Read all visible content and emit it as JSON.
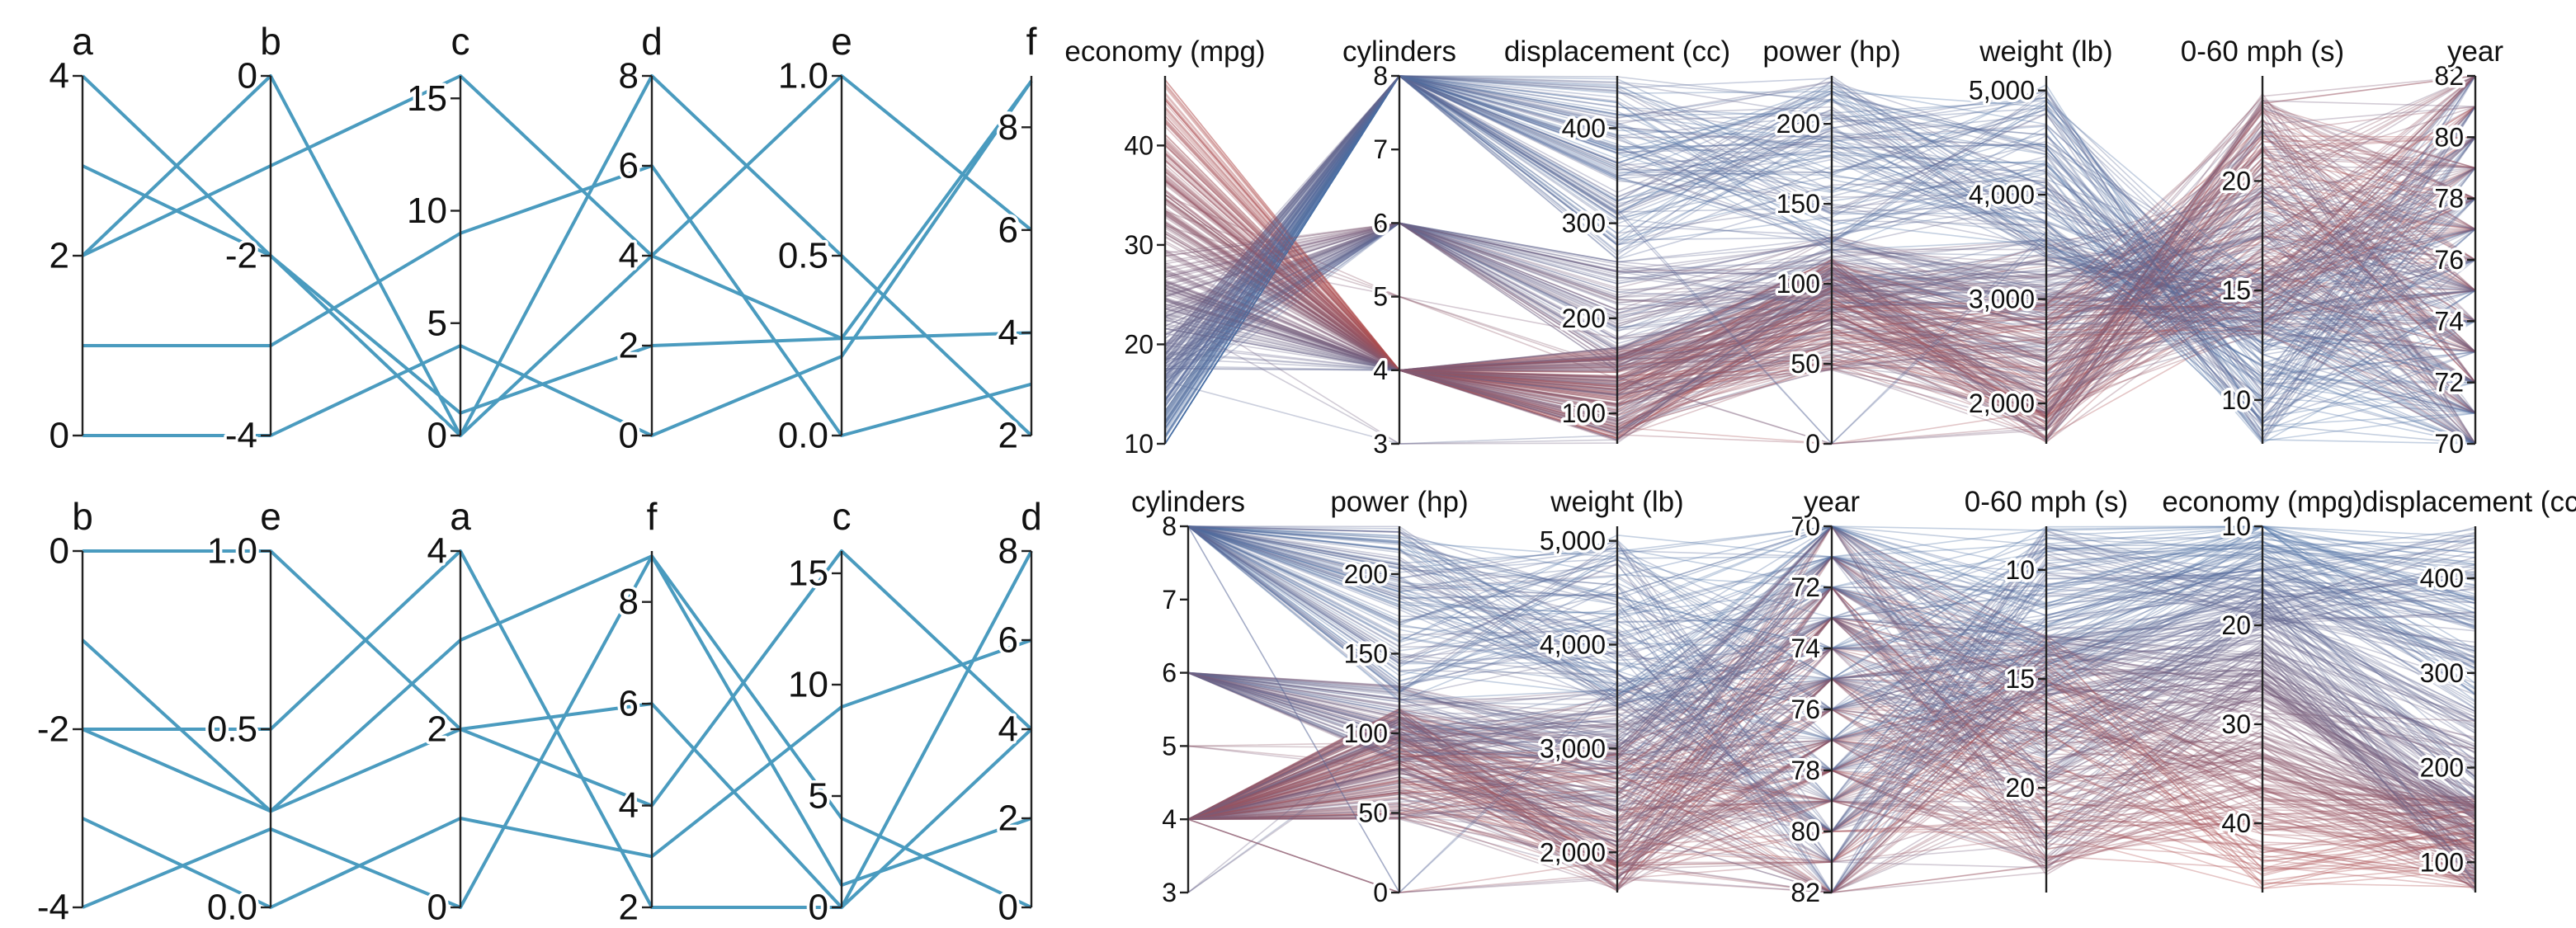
{
  "colors": {
    "small_line": "#4a9bbf",
    "car_blue": "#4a6fa5",
    "car_red": "#b04a4a"
  },
  "chart_data": [
    {
      "type": "parallel-coordinates",
      "axes": [
        {
          "name": "a",
          "range": [
            0,
            4
          ],
          "ticks": [
            0,
            2,
            4
          ],
          "tick_labels": [
            "0",
            "2",
            "4"
          ]
        },
        {
          "name": "b",
          "range": [
            -4,
            0
          ],
          "ticks": [
            -4,
            -2,
            0
          ],
          "tick_labels": [
            "-4",
            "-2",
            "0"
          ]
        },
        {
          "name": "c",
          "range": [
            0,
            16
          ],
          "ticks": [
            0,
            5,
            10,
            15
          ],
          "tick_labels": [
            "0",
            "5",
            "10",
            "15"
          ]
        },
        {
          "name": "d",
          "range": [
            0,
            8
          ],
          "ticks": [
            0,
            2,
            4,
            6,
            8
          ],
          "tick_labels": [
            "0",
            "2",
            "4",
            "6",
            "8"
          ]
        },
        {
          "name": "e",
          "range": [
            0,
            1
          ],
          "ticks": [
            0,
            0.5,
            1
          ],
          "tick_labels": [
            "0.0",
            "0.5",
            "1.0"
          ]
        },
        {
          "name": "f",
          "range": [
            2,
            9
          ],
          "ticks": [
            2,
            4,
            6,
            8
          ],
          "tick_labels": [
            "2",
            "4",
            "6",
            "8"
          ]
        }
      ],
      "records": [
        {
          "a": 4,
          "b": -2,
          "c": 0,
          "d": 8,
          "e": 0.5,
          "f": 2
        },
        {
          "a": 3,
          "b": -2,
          "c": 1,
          "d": 2,
          "e": 0.27,
          "f": 8.9
        },
        {
          "a": 2,
          "b": -1,
          "c": 16,
          "d": 4,
          "e": 0.27,
          "f": 4
        },
        {
          "a": 2,
          "b": 0,
          "c": 0,
          "d": 4,
          "e": 1,
          "f": 6
        },
        {
          "a": 1,
          "b": -3,
          "c": 9,
          "d": 6,
          "e": 0,
          "f": 3
        },
        {
          "a": 0,
          "b": -4,
          "c": 4,
          "d": 0,
          "e": 0.22,
          "f": 8.9
        }
      ]
    },
    {
      "type": "parallel-coordinates",
      "axes": [
        {
          "name": "economy (mpg)",
          "range": [
            10,
            47
          ],
          "ticks": [
            10,
            20,
            30,
            40
          ],
          "tick_labels": [
            "10",
            "20",
            "30",
            "40"
          ]
        },
        {
          "name": "cylinders",
          "range": [
            3,
            8
          ],
          "ticks": [
            3,
            4,
            5,
            6,
            7,
            8
          ],
          "tick_labels": [
            "3",
            "4",
            "5",
            "6",
            "7",
            "8"
          ]
        },
        {
          "name": "displacement (cc)",
          "range": [
            68,
            455
          ],
          "ticks": [
            100,
            200,
            300,
            400
          ],
          "tick_labels": [
            "100",
            "200",
            "300",
            "400"
          ]
        },
        {
          "name": "power (hp)",
          "range": [
            0,
            230
          ],
          "ticks": [
            0,
            50,
            100,
            150,
            200
          ],
          "tick_labels": [
            "0",
            "50",
            "100",
            "150",
            "200"
          ]
        },
        {
          "name": "weight (lb)",
          "range": [
            1613,
            5140
          ],
          "ticks": [
            2000,
            3000,
            4000,
            5000
          ],
          "tick_labels": [
            "2,000",
            "3,000",
            "4,000",
            "5,000"
          ]
        },
        {
          "name": "0-60 mph (s)",
          "range": [
            8,
            24.8
          ],
          "ticks": [
            10,
            15,
            20
          ],
          "tick_labels": [
            "10",
            "15",
            "20"
          ]
        },
        {
          "name": "year",
          "range": [
            70,
            82
          ],
          "ticks": [
            70,
            72,
            74,
            76,
            78,
            80,
            82
          ],
          "tick_labels": [
            "70",
            "72",
            "74",
            "76",
            "78",
            "80",
            "82"
          ]
        }
      ],
      "line_color": "mpg (low = blue, high = red)"
    },
    {
      "type": "parallel-coordinates",
      "axes": [
        {
          "name": "b",
          "range": [
            -4,
            0
          ],
          "ticks": [
            -4,
            -2,
            0
          ],
          "tick_labels": [
            "-4",
            "-2",
            "0"
          ]
        },
        {
          "name": "e",
          "range": [
            0,
            1
          ],
          "ticks": [
            0,
            0.5,
            1
          ],
          "tick_labels": [
            "0.0",
            "0.5",
            "1.0"
          ]
        },
        {
          "name": "a",
          "range": [
            0,
            4
          ],
          "ticks": [
            0,
            2,
            4
          ],
          "tick_labels": [
            "0",
            "2",
            "4"
          ]
        },
        {
          "name": "f",
          "range": [
            2,
            9
          ],
          "ticks": [
            2,
            4,
            6,
            8
          ],
          "tick_labels": [
            "2",
            "4",
            "6",
            "8"
          ]
        },
        {
          "name": "c",
          "range": [
            0,
            16
          ],
          "ticks": [
            0,
            5,
            10,
            15
          ],
          "tick_labels": [
            "0",
            "5",
            "10",
            "15"
          ]
        },
        {
          "name": "d",
          "range": [
            0,
            8
          ],
          "ticks": [
            0,
            2,
            4,
            6,
            8
          ],
          "tick_labels": [
            "0",
            "2",
            "4",
            "6",
            "8"
          ]
        }
      ],
      "records": "same as the first chart"
    },
    {
      "type": "parallel-coordinates",
      "axes": [
        {
          "name": "cylinders",
          "range": [
            3,
            8
          ],
          "ticks": [
            3,
            4,
            5,
            6,
            7,
            8
          ],
          "tick_labels": [
            "3",
            "4",
            "5",
            "6",
            "7",
            "8"
          ]
        },
        {
          "name": "power (hp)",
          "range": [
            0,
            230
          ],
          "ticks": [
            0,
            50,
            100,
            150,
            200
          ],
          "tick_labels": [
            "0",
            "50",
            "100",
            "150",
            "200"
          ]
        },
        {
          "name": "weight (lb)",
          "range": [
            1613,
            5140
          ],
          "ticks": [
            2000,
            3000,
            4000,
            5000
          ],
          "tick_labels": [
            "2,000",
            "3,000",
            "4,000",
            "5,000"
          ]
        },
        {
          "name": "year",
          "range": [
            70,
            82
          ],
          "reversed": true,
          "ticks": [
            70,
            72,
            74,
            76,
            78,
            80,
            82
          ],
          "tick_labels": [
            "70",
            "72",
            "74",
            "76",
            "78",
            "80",
            "82"
          ]
        },
        {
          "name": "0-60 mph (s)",
          "range": [
            8,
            24.8
          ],
          "reversed": true,
          "ticks": [
            10,
            15,
            20
          ],
          "tick_labels": [
            "10",
            "15",
            "20"
          ]
        },
        {
          "name": "economy (mpg)",
          "range": [
            10,
            47
          ],
          "reversed": true,
          "ticks": [
            10,
            20,
            30,
            40
          ],
          "tick_labels": [
            "10",
            "20",
            "30",
            "40"
          ]
        },
        {
          "name": "displacement (cc)",
          "range": [
            68,
            455
          ],
          "ticks": [
            100,
            200,
            300,
            400
          ],
          "tick_labels": [
            "100",
            "200",
            "300",
            "400"
          ]
        }
      ],
      "line_color": "mpg (low = blue, high = red)"
    }
  ]
}
